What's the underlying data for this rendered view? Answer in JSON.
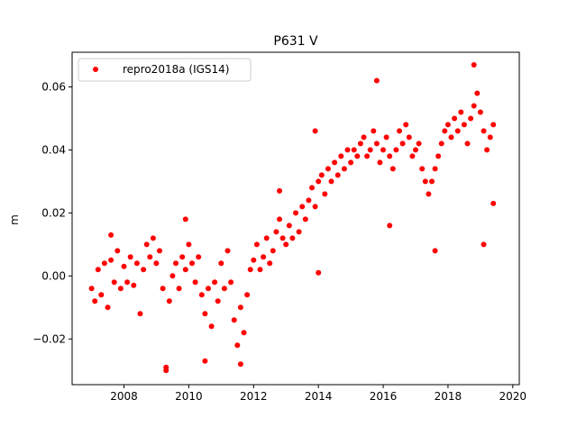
{
  "chart_data": {
    "type": "scatter",
    "title": "P631 V",
    "xlabel": "",
    "ylabel": "m",
    "xlim": [
      2006.4,
      2020.2
    ],
    "ylim": [
      -0.0345,
      0.071
    ],
    "x_ticks": [
      2008,
      2010,
      2012,
      2014,
      2016,
      2018,
      2020
    ],
    "x_tick_labels": [
      "2008",
      "2010",
      "2012",
      "2014",
      "2016",
      "2018",
      "2020"
    ],
    "y_ticks": [
      -0.02,
      0.0,
      0.02,
      0.04,
      0.06
    ],
    "y_tick_labels": [
      "−0.02",
      "0.00",
      "0.02",
      "0.04",
      "0.06"
    ],
    "grid": false,
    "legend": {
      "position": "top-left",
      "entries": [
        "repro2018a (IGS14)"
      ]
    },
    "series": [
      {
        "name": "repro2018a (IGS14)",
        "color": "#ff0000",
        "marker": "circle",
        "points": [
          [
            2007.0,
            -0.004
          ],
          [
            2007.1,
            -0.008
          ],
          [
            2007.2,
            0.002
          ],
          [
            2007.3,
            -0.006
          ],
          [
            2007.4,
            0.004
          ],
          [
            2007.5,
            -0.01
          ],
          [
            2007.6,
            0.005
          ],
          [
            2007.7,
            -0.002
          ],
          [
            2007.8,
            0.008
          ],
          [
            2007.9,
            -0.004
          ],
          [
            2008.0,
            0.003
          ],
          [
            2008.1,
            -0.002
          ],
          [
            2008.2,
            0.006
          ],
          [
            2008.3,
            -0.003
          ],
          [
            2008.4,
            0.004
          ],
          [
            2008.5,
            -0.012
          ],
          [
            2008.6,
            0.002
          ],
          [
            2008.7,
            0.01
          ],
          [
            2008.8,
            0.006
          ],
          [
            2008.9,
            0.012
          ],
          [
            2009.0,
            0.004
          ],
          [
            2009.1,
            0.008
          ],
          [
            2009.2,
            -0.004
          ],
          [
            2009.3,
            -0.03
          ],
          [
            2009.4,
            -0.008
          ],
          [
            2009.5,
            0.0
          ],
          [
            2009.6,
            0.004
          ],
          [
            2009.7,
            -0.004
          ],
          [
            2009.8,
            0.006
          ],
          [
            2009.9,
            0.002
          ],
          [
            2010.0,
            0.01
          ],
          [
            2010.1,
            0.004
          ],
          [
            2010.2,
            -0.002
          ],
          [
            2010.3,
            0.006
          ],
          [
            2010.4,
            -0.006
          ],
          [
            2010.5,
            -0.012
          ],
          [
            2010.6,
            -0.004
          ],
          [
            2010.7,
            -0.016
          ],
          [
            2010.8,
            -0.002
          ],
          [
            2010.9,
            -0.008
          ],
          [
            2011.0,
            0.004
          ],
          [
            2011.1,
            -0.004
          ],
          [
            2011.2,
            0.008
          ],
          [
            2011.3,
            -0.002
          ],
          [
            2011.4,
            -0.014
          ],
          [
            2011.5,
            -0.022
          ],
          [
            2011.6,
            -0.01
          ],
          [
            2011.7,
            -0.018
          ],
          [
            2011.8,
            -0.006
          ],
          [
            2011.9,
            0.002
          ],
          [
            2012.0,
            0.005
          ],
          [
            2012.1,
            0.01
          ],
          [
            2012.2,
            0.002
          ],
          [
            2012.3,
            0.006
          ],
          [
            2012.4,
            0.012
          ],
          [
            2012.5,
            0.004
          ],
          [
            2012.6,
            0.008
          ],
          [
            2012.7,
            0.014
          ],
          [
            2012.8,
            0.018
          ],
          [
            2012.9,
            0.012
          ],
          [
            2013.0,
            0.01
          ],
          [
            2013.1,
            0.016
          ],
          [
            2013.2,
            0.012
          ],
          [
            2013.3,
            0.02
          ],
          [
            2013.4,
            0.014
          ],
          [
            2013.5,
            0.022
          ],
          [
            2013.6,
            0.018
          ],
          [
            2013.7,
            0.024
          ],
          [
            2013.8,
            0.028
          ],
          [
            2013.9,
            0.022
          ],
          [
            2014.0,
            0.03
          ],
          [
            2014.1,
            0.032
          ],
          [
            2014.2,
            0.026
          ],
          [
            2014.3,
            0.034
          ],
          [
            2014.4,
            0.03
          ],
          [
            2014.5,
            0.036
          ],
          [
            2014.6,
            0.032
          ],
          [
            2014.7,
            0.038
          ],
          [
            2014.8,
            0.034
          ],
          [
            2014.9,
            0.04
          ],
          [
            2015.0,
            0.036
          ],
          [
            2015.1,
            0.04
          ],
          [
            2015.2,
            0.038
          ],
          [
            2015.3,
            0.042
          ],
          [
            2015.4,
            0.044
          ],
          [
            2015.5,
            0.038
          ],
          [
            2015.6,
            0.04
          ],
          [
            2015.7,
            0.046
          ],
          [
            2015.8,
            0.042
          ],
          [
            2015.9,
            0.036
          ],
          [
            2016.0,
            0.04
          ],
          [
            2016.1,
            0.044
          ],
          [
            2016.2,
            0.038
          ],
          [
            2016.3,
            0.034
          ],
          [
            2016.4,
            0.04
          ],
          [
            2016.5,
            0.046
          ],
          [
            2016.6,
            0.042
          ],
          [
            2016.7,
            0.048
          ],
          [
            2016.8,
            0.044
          ],
          [
            2016.9,
            0.038
          ],
          [
            2017.0,
            0.04
          ],
          [
            2017.1,
            0.042
          ],
          [
            2017.2,
            0.034
          ],
          [
            2017.3,
            0.03
          ],
          [
            2017.4,
            0.026
          ],
          [
            2017.5,
            0.03
          ],
          [
            2017.6,
            0.034
          ],
          [
            2017.7,
            0.038
          ],
          [
            2017.8,
            0.042
          ],
          [
            2017.9,
            0.046
          ],
          [
            2018.0,
            0.048
          ],
          [
            2018.1,
            0.044
          ],
          [
            2018.2,
            0.05
          ],
          [
            2018.3,
            0.046
          ],
          [
            2018.4,
            0.052
          ],
          [
            2018.5,
            0.048
          ],
          [
            2018.6,
            0.042
          ],
          [
            2018.7,
            0.05
          ],
          [
            2018.8,
            0.054
          ],
          [
            2018.9,
            0.058
          ],
          [
            2019.0,
            0.052
          ],
          [
            2019.1,
            0.046
          ],
          [
            2019.2,
            0.04
          ],
          [
            2019.3,
            0.044
          ],
          [
            2019.4,
            0.048
          ],
          [
            2009.3,
            -0.029
          ],
          [
            2014.0,
            0.001
          ],
          [
            2016.2,
            0.016
          ],
          [
            2017.6,
            0.008
          ],
          [
            2019.1,
            0.01
          ],
          [
            2019.4,
            0.023
          ],
          [
            2018.8,
            0.067
          ],
          [
            2015.8,
            0.062
          ],
          [
            2011.6,
            -0.028
          ],
          [
            2010.5,
            -0.027
          ],
          [
            2007.6,
            0.013
          ],
          [
            2009.9,
            0.018
          ],
          [
            2012.8,
            0.027
          ],
          [
            2013.9,
            0.046
          ]
        ]
      }
    ]
  }
}
